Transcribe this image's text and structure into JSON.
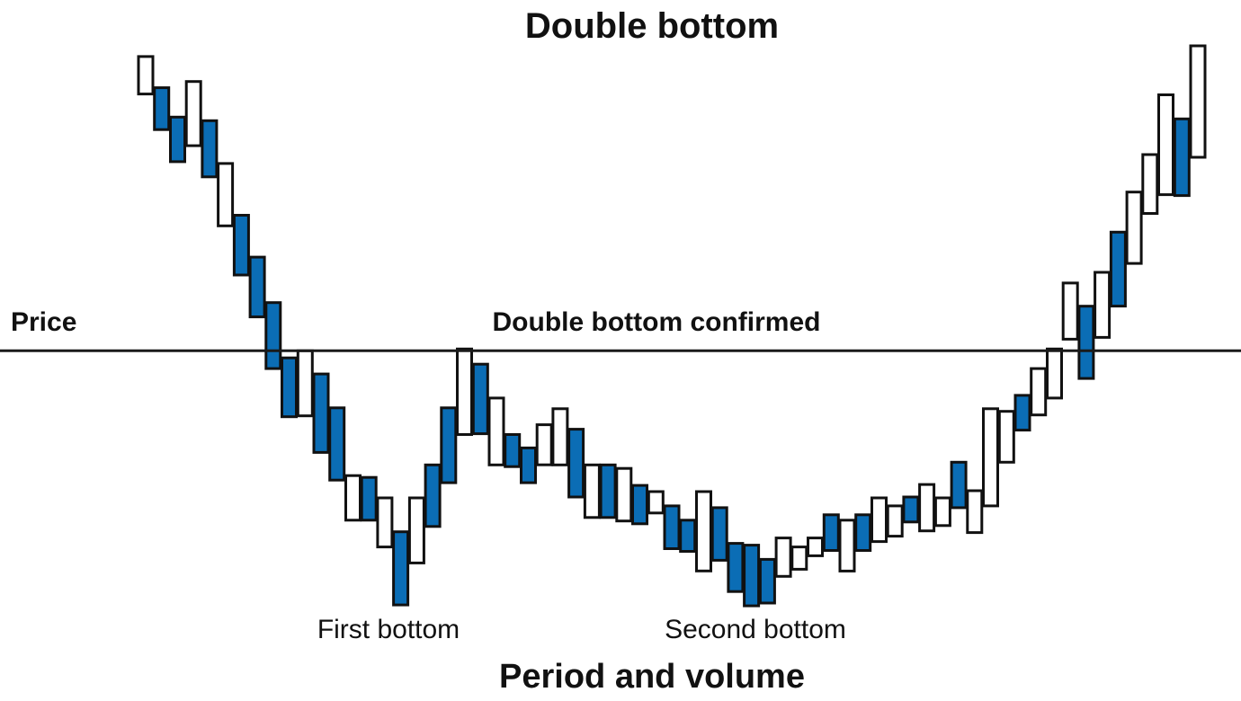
{
  "chart_data": {
    "type": "bar",
    "subtype": "overlapping-price-range-bars",
    "title": "Double bottom",
    "xlabel": "Period and volume",
    "ylabel": "Price",
    "colors": {
      "filled": "#0b6db5",
      "hollow": "#ffffff",
      "stroke": "#111111"
    },
    "bars": [
      {
        "low": 678,
        "high": 720,
        "filled": false
      },
      {
        "low": 638,
        "high": 685,
        "filled": true
      },
      {
        "low": 602,
        "high": 652,
        "filled": true
      },
      {
        "low": 620,
        "high": 692,
        "filled": false
      },
      {
        "low": 585,
        "high": 648,
        "filled": true
      },
      {
        "low": 530,
        "high": 600,
        "filled": false
      },
      {
        "low": 475,
        "high": 542,
        "filled": true
      },
      {
        "low": 428,
        "high": 495,
        "filled": true
      },
      {
        "low": 370,
        "high": 444,
        "filled": true
      },
      {
        "low": 316,
        "high": 382,
        "filled": true
      },
      {
        "low": 317,
        "high": 390,
        "filled": false
      },
      {
        "low": 276,
        "high": 364,
        "filled": true
      },
      {
        "low": 245,
        "high": 326,
        "filled": true
      },
      {
        "low": 200,
        "high": 250,
        "filled": false
      },
      {
        "low": 200,
        "high": 248,
        "filled": true
      },
      {
        "low": 170,
        "high": 225,
        "filled": false
      },
      {
        "low": 105,
        "high": 187,
        "filled": true
      },
      {
        "low": 152,
        "high": 225,
        "filled": false
      },
      {
        "low": 193,
        "high": 262,
        "filled": true
      },
      {
        "low": 242,
        "high": 326,
        "filled": true
      },
      {
        "low": 296,
        "high": 392,
        "filled": false
      },
      {
        "low": 297,
        "high": 375,
        "filled": true
      },
      {
        "low": 262,
        "high": 337,
        "filled": false
      },
      {
        "low": 260,
        "high": 296,
        "filled": true
      },
      {
        "low": 242,
        "high": 281,
        "filled": true
      },
      {
        "low": 262,
        "high": 307,
        "filled": false
      },
      {
        "low": 262,
        "high": 325,
        "filled": false
      },
      {
        "low": 226,
        "high": 302,
        "filled": true
      },
      {
        "low": 203,
        "high": 262,
        "filled": false
      },
      {
        "low": 203,
        "high": 262,
        "filled": true
      },
      {
        "low": 199,
        "high": 258,
        "filled": false
      },
      {
        "low": 196,
        "high": 239,
        "filled": true
      },
      {
        "low": 208,
        "high": 232,
        "filled": false
      },
      {
        "low": 168,
        "high": 216,
        "filled": true
      },
      {
        "low": 165,
        "high": 200,
        "filled": true
      },
      {
        "low": 143,
        "high": 232,
        "filled": false
      },
      {
        "low": 155,
        "high": 214,
        "filled": true
      },
      {
        "low": 120,
        "high": 174,
        "filled": true
      },
      {
        "low": 104,
        "high": 172,
        "filled": true
      },
      {
        "low": 107,
        "high": 156,
        "filled": true
      },
      {
        "low": 137,
        "high": 180,
        "filled": false
      },
      {
        "low": 145,
        "high": 170,
        "filled": false
      },
      {
        "low": 160,
        "high": 180,
        "filled": false
      },
      {
        "low": 166,
        "high": 206,
        "filled": true
      },
      {
        "low": 143,
        "high": 200,
        "filled": false
      },
      {
        "low": 166,
        "high": 206,
        "filled": true
      },
      {
        "low": 176,
        "high": 225,
        "filled": false
      },
      {
        "low": 182,
        "high": 216,
        "filled": false
      },
      {
        "low": 198,
        "high": 226,
        "filled": true
      },
      {
        "low": 188,
        "high": 240,
        "filled": false
      },
      {
        "low": 194,
        "high": 225,
        "filled": false
      },
      {
        "low": 214,
        "high": 265,
        "filled": true
      },
      {
        "low": 186,
        "high": 233,
        "filled": false
      },
      {
        "low": 216,
        "high": 325,
        "filled": false
      },
      {
        "low": 265,
        "high": 322,
        "filled": false
      },
      {
        "low": 301,
        "high": 340,
        "filled": true
      },
      {
        "low": 318,
        "high": 370,
        "filled": false
      },
      {
        "low": 337,
        "high": 392,
        "filled": false
      },
      {
        "low": 403,
        "high": 466,
        "filled": false
      },
      {
        "low": 359,
        "high": 440,
        "filled": true
      },
      {
        "low": 405,
        "high": 478,
        "filled": false
      },
      {
        "low": 440,
        "high": 523,
        "filled": true
      },
      {
        "low": 488,
        "high": 568,
        "filled": false
      },
      {
        "low": 544,
        "high": 610,
        "filled": false
      },
      {
        "low": 565,
        "high": 677,
        "filled": false
      },
      {
        "low": 564,
        "high": 650,
        "filled": true
      },
      {
        "low": 607,
        "high": 732,
        "filled": false
      }
    ],
    "breakout_level": 390,
    "ylim": [
      100,
      735
    ],
    "annotations": {
      "first_bottom": "First bottom",
      "second_bottom": "Second bottom",
      "confirmed": "Double bottom confirmed"
    },
    "grid": false,
    "legend": "none"
  }
}
